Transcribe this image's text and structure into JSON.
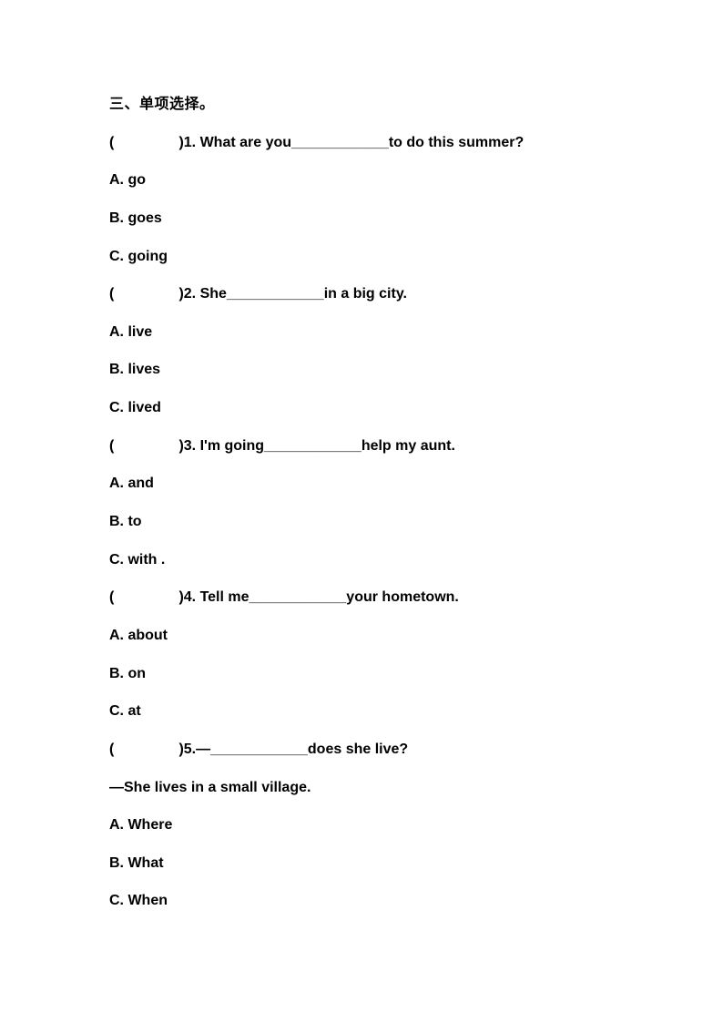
{
  "document": {
    "section_heading": "三、单项选择。",
    "questions": [
      {
        "stem": "(                )1. What are you____________to do this summer?",
        "options": [
          "A. go",
          "B. goes",
          "C. going"
        ]
      },
      {
        "stem": "(                )2. She____________in a big city.",
        "options": [
          "A. live",
          "B. lives",
          "C. lived"
        ]
      },
      {
        "stem": "(                )3. I'm going____________help my aunt.",
        "options": [
          "A. and",
          "B. to",
          "C. with ."
        ]
      },
      {
        "stem": "(                )4. Tell me____________your hometown.",
        "options": [
          "A. about",
          "B. on",
          "C. at"
        ]
      },
      {
        "stem": "(                )5.—____________does she live?",
        "reply_line": "—She lives in a small village.",
        "options": [
          "A. Where",
          "B. What",
          "C. When"
        ]
      }
    ]
  }
}
